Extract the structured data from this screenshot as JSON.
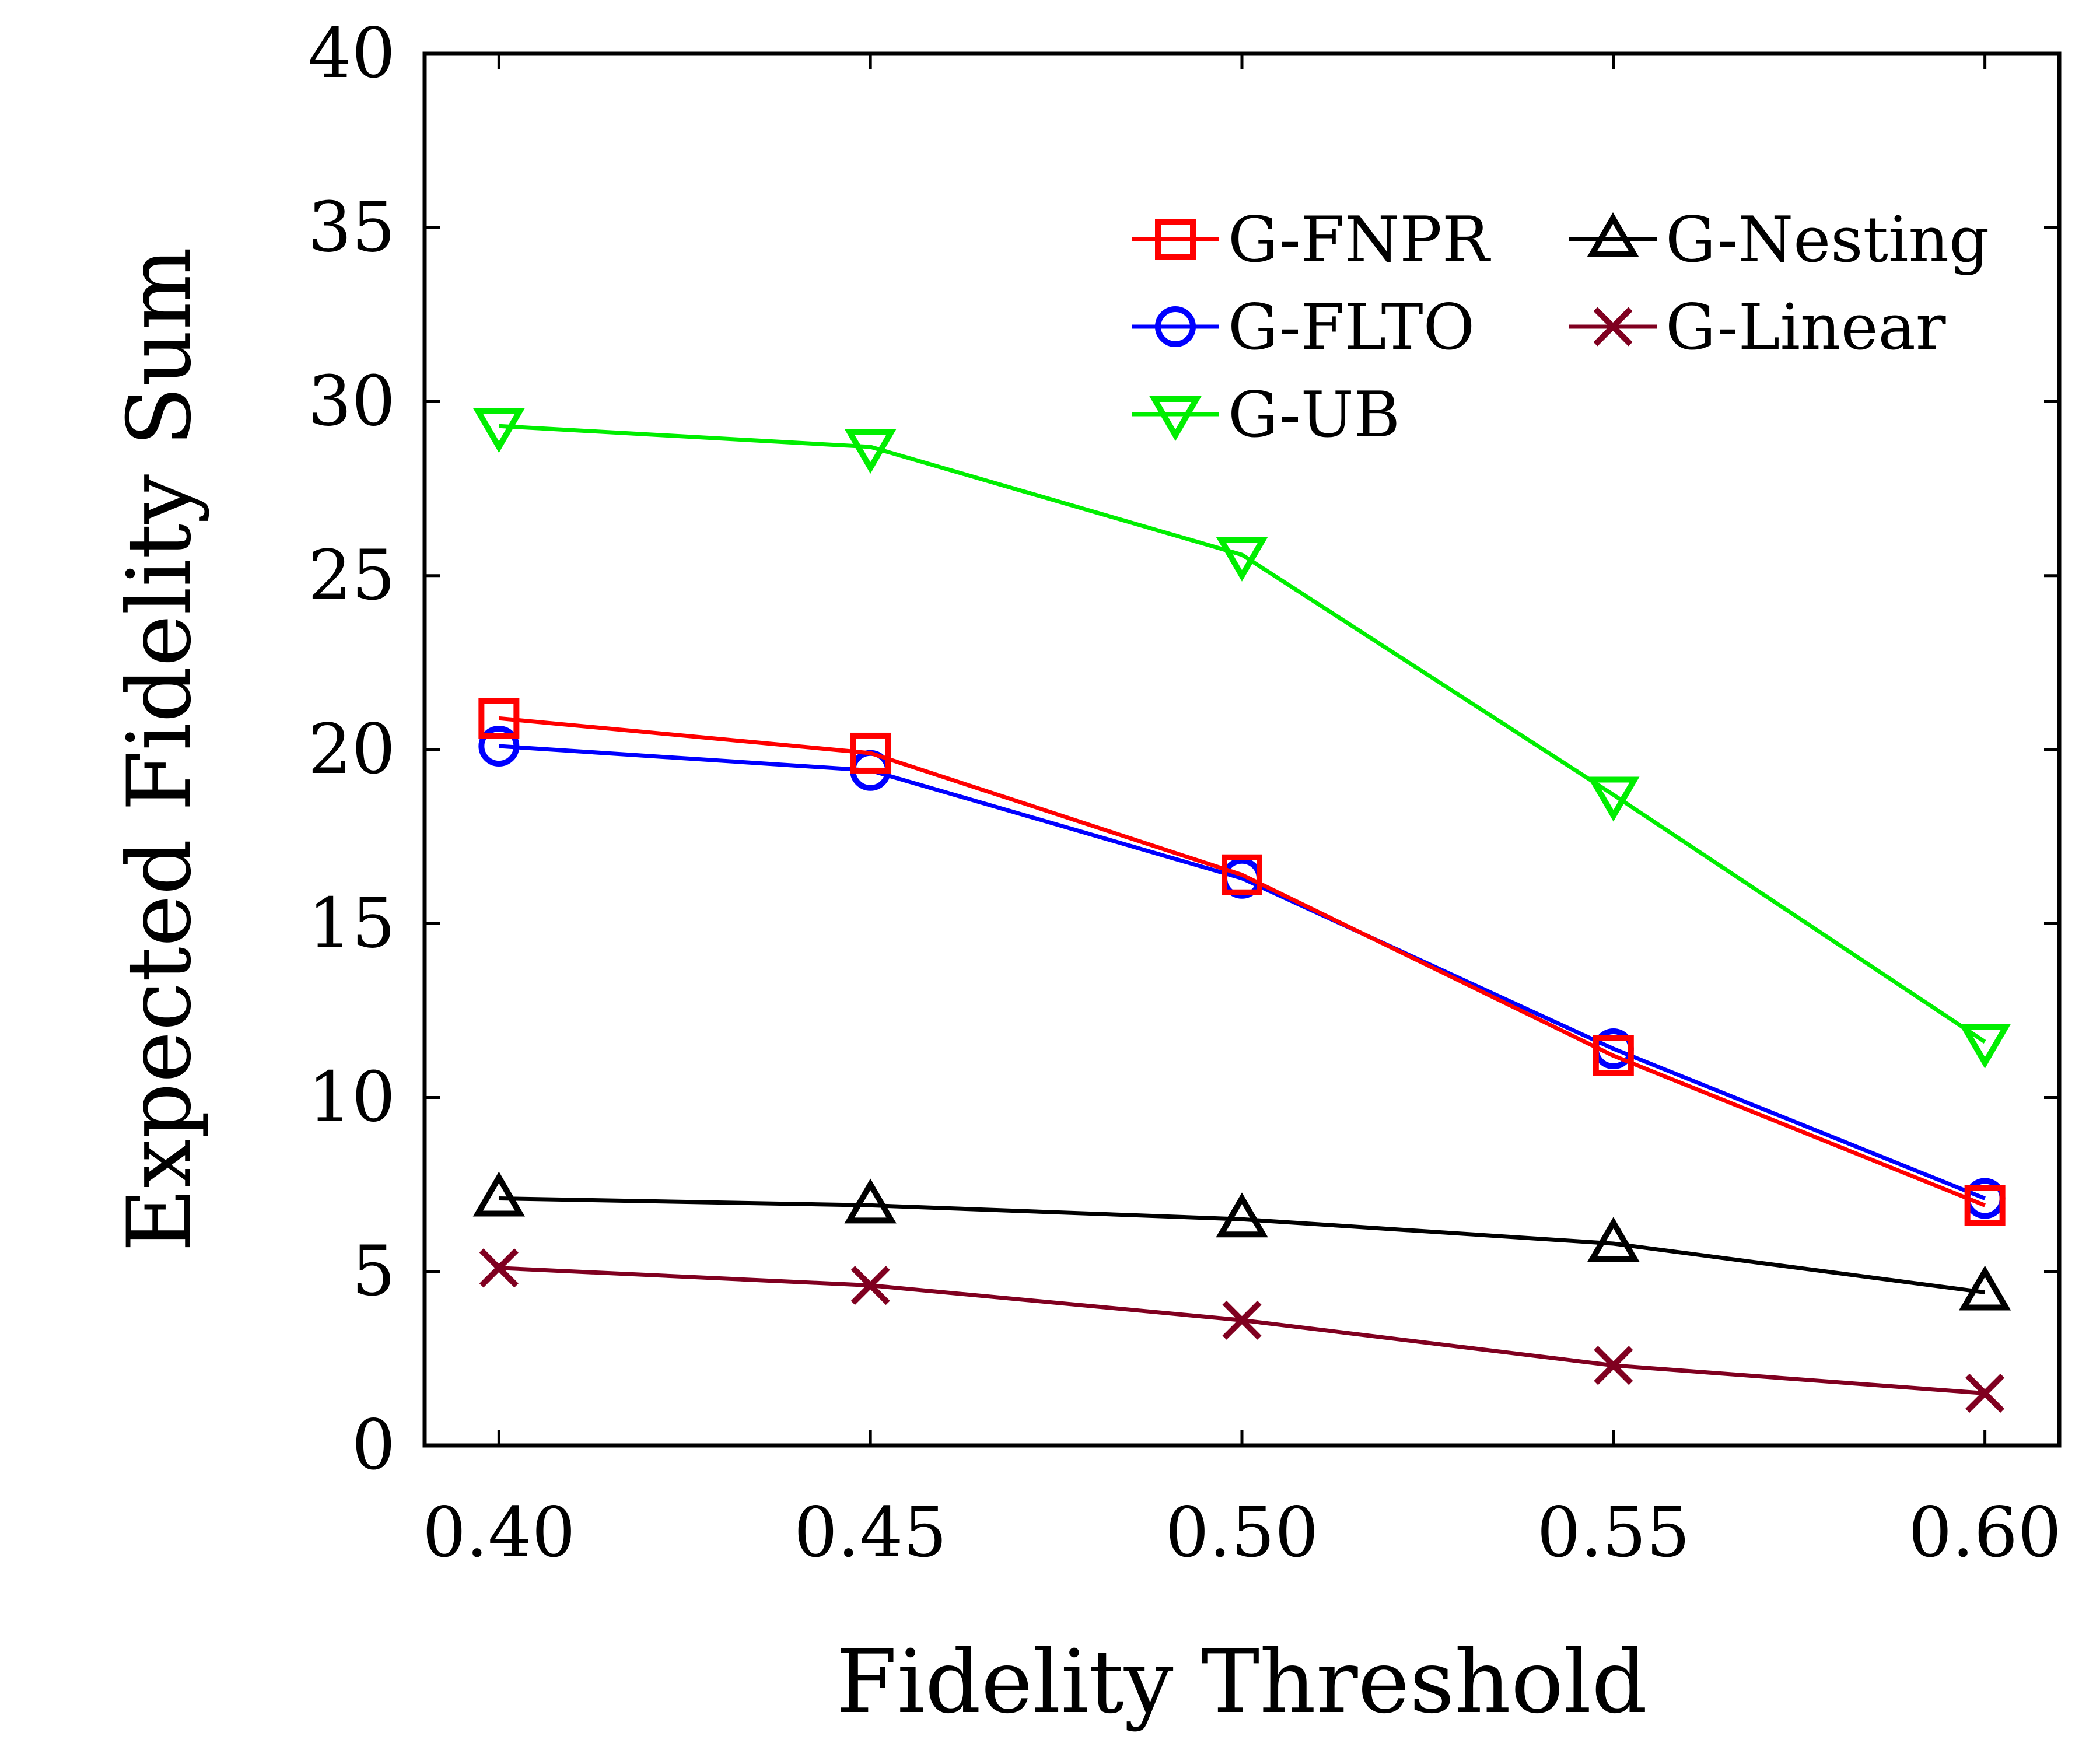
{
  "chart_data": {
    "type": "line",
    "xlabel": "Fidelity Threshold",
    "ylabel": "Expected Fidelity Sum",
    "x": [
      0.4,
      0.45,
      0.5,
      0.55,
      0.6
    ],
    "x_tick_labels": [
      "0.40",
      "0.45",
      "0.50",
      "0.55",
      "0.60"
    ],
    "y_tick_labels": [
      "0",
      "5",
      "10",
      "15",
      "20",
      "25",
      "30",
      "35",
      "40"
    ],
    "xlim": [
      0.39,
      0.61
    ],
    "ylim": [
      0,
      40
    ],
    "grid": false,
    "legend_position": "top-right",
    "series": [
      {
        "name": "G-FNPR",
        "color": "#ff0000",
        "marker": "square",
        "values": [
          20.9,
          19.9,
          16.4,
          11.2,
          6.9
        ]
      },
      {
        "name": "G-FLTO",
        "color": "#0000ff",
        "marker": "circle",
        "values": [
          20.1,
          19.4,
          16.3,
          11.4,
          7.1
        ]
      },
      {
        "name": "G-UB",
        "color": "#00ee00",
        "marker": "triangle-down",
        "values": [
          29.3,
          28.7,
          25.6,
          18.7,
          11.6
        ]
      },
      {
        "name": "G-Nesting",
        "color": "#000000",
        "marker": "triangle-up",
        "values": [
          7.1,
          6.9,
          6.5,
          5.8,
          4.4
        ]
      },
      {
        "name": "G-Linear",
        "color": "#800020",
        "marker": "x",
        "values": [
          5.1,
          4.6,
          3.6,
          2.3,
          1.5
        ]
      }
    ]
  }
}
